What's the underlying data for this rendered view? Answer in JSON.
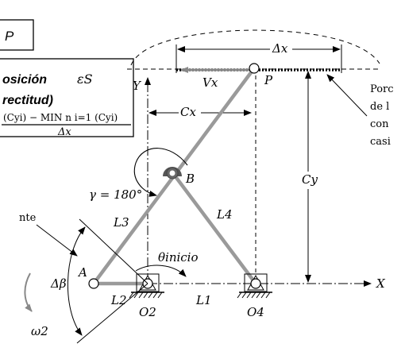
{
  "colors": {
    "ink": "#000000",
    "link": "#9a9a9a",
    "link_dark": "#555555"
  },
  "top_box": {
    "text": "P"
  },
  "formula_box": {
    "line1_prefix": "osición",
    "line1_symbol": "εS",
    "line2": "rectitud)",
    "numerator": "(Cyi) − MIN n i=1 (Cyi)",
    "denominator": "Δx"
  },
  "labels": {
    "delta_x": "Δx",
    "vx": "Vx",
    "p": "P",
    "y_axis": "Y",
    "cx": "Cx",
    "cy": "Cy",
    "gamma": "γ = 180°",
    "b": "B",
    "l3": "L3",
    "l4": "L4",
    "theta": "θinicio",
    "a": "A",
    "l2": "L2",
    "l1": "L1",
    "o2": "O2",
    "o4": "O4",
    "x_axis": "X",
    "delta_beta": "Δβ",
    "omega": "ω2",
    "left_cut": "nte"
  },
  "right_note_lines": [
    "Porc",
    "de l",
    "con",
    "casi"
  ]
}
